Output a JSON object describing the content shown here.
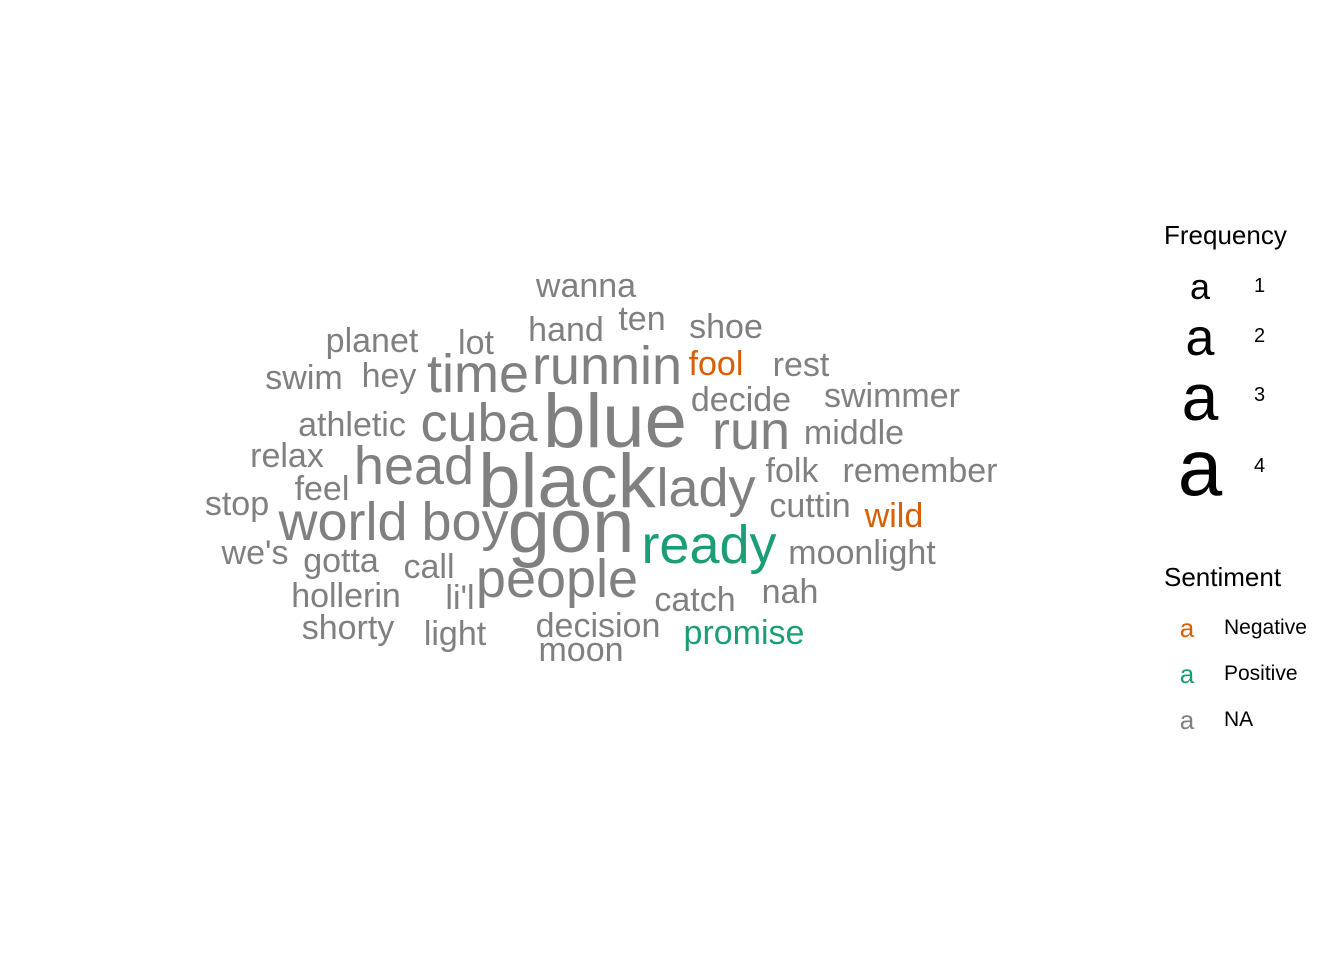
{
  "chart_data": {
    "type": "wordcloud",
    "words": [
      {
        "word": "blue",
        "frequency": 4,
        "sentiment": "NA"
      },
      {
        "word": "black",
        "frequency": 4,
        "sentiment": "NA"
      },
      {
        "word": "gon",
        "frequency": 4,
        "sentiment": "NA"
      },
      {
        "word": "runnin",
        "frequency": 3,
        "sentiment": "NA"
      },
      {
        "word": "time",
        "frequency": 3,
        "sentiment": "NA"
      },
      {
        "word": "cuba",
        "frequency": 3,
        "sentiment": "NA"
      },
      {
        "word": "run",
        "frequency": 3,
        "sentiment": "NA"
      },
      {
        "word": "head",
        "frequency": 3,
        "sentiment": "NA"
      },
      {
        "word": "lady",
        "frequency": 3,
        "sentiment": "NA"
      },
      {
        "word": "world",
        "frequency": 3,
        "sentiment": "NA"
      },
      {
        "word": "boy",
        "frequency": 3,
        "sentiment": "NA"
      },
      {
        "word": "ready",
        "frequency": 3,
        "sentiment": "Positive"
      },
      {
        "word": "people",
        "frequency": 3,
        "sentiment": "NA"
      },
      {
        "word": "wanna",
        "frequency": 2,
        "sentiment": "NA"
      },
      {
        "word": "hand",
        "frequency": 2,
        "sentiment": "NA"
      },
      {
        "word": "ten",
        "frequency": 2,
        "sentiment": "NA"
      },
      {
        "word": "shoe",
        "frequency": 2,
        "sentiment": "NA"
      },
      {
        "word": "planet",
        "frequency": 2,
        "sentiment": "NA"
      },
      {
        "word": "lot",
        "frequency": 2,
        "sentiment": "NA"
      },
      {
        "word": "fool",
        "frequency": 2,
        "sentiment": "Negative"
      },
      {
        "word": "rest",
        "frequency": 2,
        "sentiment": "NA"
      },
      {
        "word": "swim",
        "frequency": 2,
        "sentiment": "NA"
      },
      {
        "word": "hey",
        "frequency": 2,
        "sentiment": "NA"
      },
      {
        "word": "decide",
        "frequency": 2,
        "sentiment": "NA"
      },
      {
        "word": "swimmer",
        "frequency": 2,
        "sentiment": "NA"
      },
      {
        "word": "athletic",
        "frequency": 2,
        "sentiment": "NA"
      },
      {
        "word": "middle",
        "frequency": 2,
        "sentiment": "NA"
      },
      {
        "word": "relax",
        "frequency": 2,
        "sentiment": "NA"
      },
      {
        "word": "folk",
        "frequency": 2,
        "sentiment": "NA"
      },
      {
        "word": "remember",
        "frequency": 2,
        "sentiment": "NA"
      },
      {
        "word": "feel",
        "frequency": 2,
        "sentiment": "NA"
      },
      {
        "word": "stop",
        "frequency": 2,
        "sentiment": "NA"
      },
      {
        "word": "cuttin",
        "frequency": 2,
        "sentiment": "NA"
      },
      {
        "word": "wild",
        "frequency": 2,
        "sentiment": "Negative"
      },
      {
        "word": "we's",
        "frequency": 2,
        "sentiment": "NA"
      },
      {
        "word": "gotta",
        "frequency": 2,
        "sentiment": "NA"
      },
      {
        "word": "call",
        "frequency": 2,
        "sentiment": "NA"
      },
      {
        "word": "moonlight",
        "frequency": 2,
        "sentiment": "NA"
      },
      {
        "word": "hollerin",
        "frequency": 2,
        "sentiment": "NA"
      },
      {
        "word": "li'l",
        "frequency": 2,
        "sentiment": "NA"
      },
      {
        "word": "catch",
        "frequency": 2,
        "sentiment": "NA"
      },
      {
        "word": "nah",
        "frequency": 2,
        "sentiment": "NA"
      },
      {
        "word": "shorty",
        "frequency": 2,
        "sentiment": "NA"
      },
      {
        "word": "light",
        "frequency": 2,
        "sentiment": "NA"
      },
      {
        "word": "decision",
        "frequency": 2,
        "sentiment": "NA"
      },
      {
        "word": "promise",
        "frequency": 2,
        "sentiment": "Positive"
      },
      {
        "word": "moon",
        "frequency": 2,
        "sentiment": "NA"
      }
    ],
    "colors": {
      "Negative": "#D95F02",
      "Positive": "#1B9E77",
      "NA": "#808080"
    },
    "legend": {
      "frequency_title": "Frequency",
      "frequency_glyph": "a",
      "frequency_levels": [
        "1",
        "2",
        "3",
        "4"
      ],
      "sentiment_title": "Sentiment",
      "sentiment_glyph": "a",
      "sentiment_levels": [
        "Negative",
        "Positive",
        "NA"
      ],
      "placement": "right"
    }
  }
}
